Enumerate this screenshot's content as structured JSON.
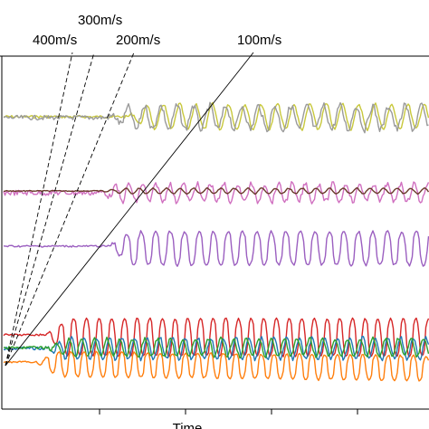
{
  "chart_data": {
    "type": "line",
    "xlabel": "Time",
    "ylabel": "",
    "grid": false,
    "legend": "none",
    "velocity_lines": [
      {
        "label": "400m/s",
        "color": "#000000",
        "dashed": true
      },
      {
        "label": "300m/s",
        "color": "#000000",
        "dashed": true
      },
      {
        "label": "200m/s",
        "color": "#000000",
        "dashed": true
      },
      {
        "label": "100m/s",
        "color": "#000000",
        "dashed": false
      }
    ],
    "series": [
      {
        "color": "#c8c83c",
        "group": "top"
      },
      {
        "color": "#9a9a9a",
        "group": "top"
      },
      {
        "color": "#d070c0",
        "group": "second"
      },
      {
        "color": "#6a3a2a",
        "group": "second"
      },
      {
        "color": "#9b5fc0",
        "group": "third"
      },
      {
        "color": "#d62728",
        "group": "bottom"
      },
      {
        "color": "#1f77b4",
        "group": "bottom"
      },
      {
        "color": "#2ca02c",
        "group": "bottom"
      },
      {
        "color": "#ff7f0e",
        "group": "bottom"
      }
    ]
  }
}
